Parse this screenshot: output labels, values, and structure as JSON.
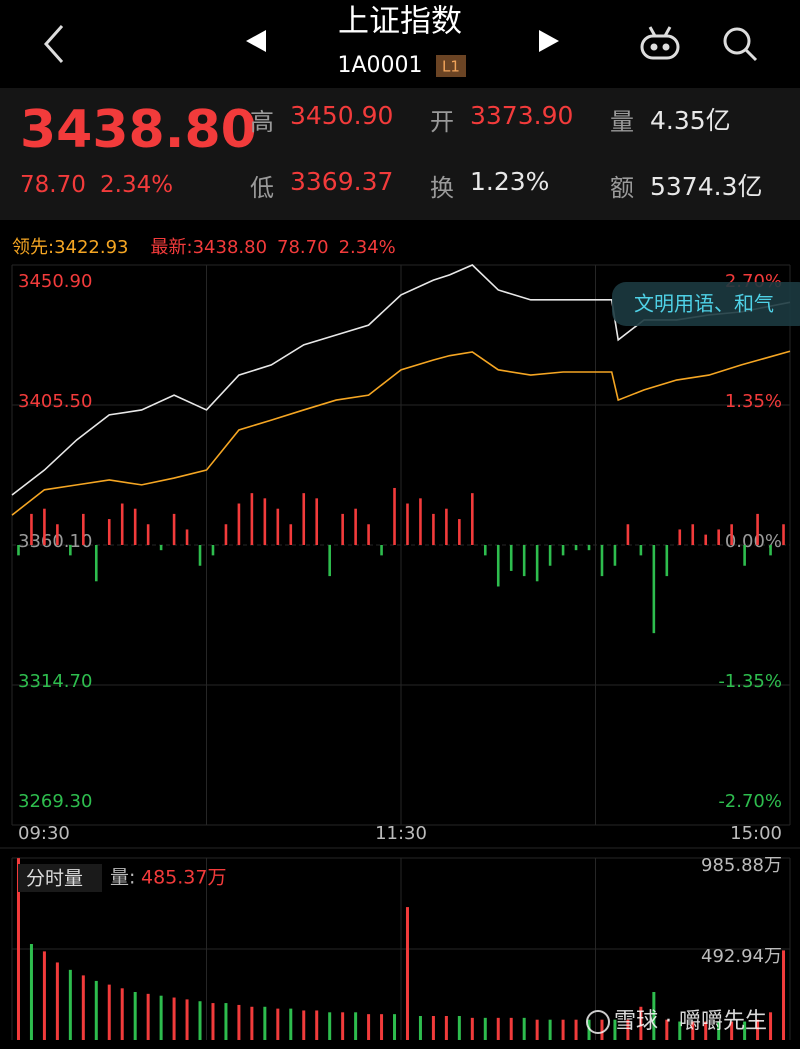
{
  "header": {
    "title": "上证指数",
    "code": "1A0001",
    "level": "L1"
  },
  "quote": {
    "price": "3438.80",
    "change": "78.70",
    "change_pct": "2.34%",
    "stats": [
      {
        "label": "高",
        "value": "3450.90",
        "color": "#f23b3b"
      },
      {
        "label": "开",
        "value": "3373.90",
        "color": "#f23b3b"
      },
      {
        "label": "量",
        "value": "4.35亿",
        "color": "#e8e8e8"
      },
      {
        "label": "低",
        "value": "3369.37",
        "color": "#f23b3b"
      },
      {
        "label": "换",
        "value": "1.23%",
        "color": "#e8e8e8"
      },
      {
        "label": "额",
        "value": "5374.3亿",
        "color": "#e8e8e8"
      }
    ]
  },
  "legend": {
    "lead_label": "领先:",
    "lead_value": "3422.93",
    "latest_label": "最新:",
    "latest_value": "3438.80",
    "latest_change": "78.70",
    "latest_pct": "2.34%"
  },
  "chart_data": [
    {
      "type": "line",
      "xlim": [
        0,
        240
      ],
      "xticks": [
        {
          "value": 0,
          "label": "09:30"
        },
        {
          "value": 120,
          "label": "11:30"
        },
        {
          "value": 240,
          "label": "15:00"
        }
      ],
      "xgrid": [
        0,
        60,
        120,
        180,
        240
      ],
      "ylim": [
        3269.3,
        3450.9
      ],
      "yticks": [
        {
          "value": 3450.9,
          "label": "3450.90"
        },
        {
          "value": 3405.5,
          "label": "3405.50"
        },
        {
          "value": 3360.1,
          "label": "3360.10"
        },
        {
          "value": 3314.7,
          "label": "3314.70"
        },
        {
          "value": 3269.3,
          "label": "3269.30"
        }
      ],
      "y2lim": [
        -2.7,
        2.7
      ],
      "y2ticks": [
        {
          "value": 2.7,
          "label": "2.70%"
        },
        {
          "value": 1.35,
          "label": "1.35%"
        },
        {
          "value": 0,
          "label": "0.00%"
        },
        {
          "value": -1.35,
          "label": "-1.35%"
        },
        {
          "value": -2.7,
          "label": "-2.70%"
        }
      ],
      "up_color": "#f23b3b",
      "down_color": "#2ebd4e",
      "flat_color": "#9a9a9a",
      "x": [
        0,
        10,
        20,
        30,
        40,
        50,
        60,
        70,
        80,
        90,
        100,
        110,
        120,
        130,
        135,
        142,
        150,
        160,
        170,
        180,
        185,
        187,
        195,
        205,
        215,
        225,
        240
      ],
      "series": [
        {
          "color": "#e8e8e8",
          "values": [
            3376.3,
            3384.4,
            3394.2,
            3402.3,
            3403.9,
            3408.7,
            3403.9,
            3415.2,
            3418.5,
            3425.0,
            3428.2,
            3431.4,
            3441.2,
            3446.0,
            3447.7,
            3450.9,
            3442.8,
            3439.6,
            3439.6,
            3439.6,
            3439.6,
            3426.6,
            3433.1,
            3433.1,
            3434.7,
            3435.7,
            3438.8
          ]
        },
        {
          "color": "#f5a623",
          "values": [
            3369.8,
            3378.0,
            3379.6,
            3381.2,
            3379.6,
            3381.8,
            3384.4,
            3397.4,
            3400.6,
            3403.9,
            3407.1,
            3408.7,
            3416.9,
            3420.1,
            3421.5,
            3422.7,
            3416.9,
            3415.2,
            3416.2,
            3416.2,
            3416.2,
            3407.1,
            3410.4,
            3413.6,
            3415.2,
            3418.5,
            3422.93
          ]
        },
        {
          "type": "bar",
          "axis": "y2",
          "x": [
            2,
            6,
            10,
            14,
            18,
            22,
            26,
            30,
            34,
            38,
            42,
            46,
            50,
            54,
            58,
            62,
            66,
            70,
            74,
            78,
            82,
            86,
            90,
            94,
            98,
            102,
            106,
            110,
            114,
            118,
            122,
            126,
            130,
            134,
            138,
            142,
            146,
            150,
            154,
            158,
            162,
            166,
            170,
            174,
            178,
            182,
            186,
            190,
            194,
            198,
            202,
            206,
            210,
            214,
            218,
            222,
            226,
            230,
            234,
            238
          ],
          "values": [
            -0.1,
            0.3,
            0.35,
            0.2,
            -0.1,
            0.3,
            -0.35,
            0.25,
            0.4,
            0.35,
            0.2,
            -0.05,
            0.3,
            0.15,
            -0.2,
            -0.1,
            0.2,
            0.4,
            0.5,
            0.45,
            0.35,
            0.2,
            0.5,
            0.45,
            -0.3,
            0.3,
            0.35,
            0.2,
            -0.1,
            0.55,
            0.4,
            0.45,
            0.3,
            0.35,
            0.25,
            0.5,
            -0.1,
            -0.4,
            -0.25,
            -0.3,
            -0.35,
            -0.2,
            -0.1,
            -0.05,
            -0.05,
            -0.3,
            -0.2,
            0.2,
            -0.1,
            -0.85,
            -0.3,
            0.15,
            0.2,
            0.1,
            0.15,
            0.2,
            -0.2,
            0.3,
            -0.1,
            0.2
          ]
        }
      ]
    },
    {
      "type": "bar",
      "title": "分时量",
      "current_label": "量:",
      "current_value": "485.37万",
      "xlim": [
        0,
        240
      ],
      "ylim": [
        0,
        985.88
      ],
      "yticks": [
        {
          "value": 985.88,
          "label": "985.88万"
        },
        {
          "value": 492.94,
          "label": "492.94万"
        }
      ],
      "up_color": "#f23b3b",
      "down_color": "#2ebd4e",
      "x": [
        2,
        6,
        10,
        14,
        18,
        22,
        26,
        30,
        34,
        38,
        42,
        46,
        50,
        54,
        58,
        62,
        66,
        70,
        74,
        78,
        82,
        86,
        90,
        94,
        98,
        102,
        106,
        110,
        114,
        118,
        122,
        126,
        130,
        134,
        138,
        142,
        146,
        150,
        154,
        158,
        162,
        166,
        170,
        174,
        178,
        182,
        186,
        190,
        194,
        198,
        202,
        206,
        210,
        214,
        218,
        222,
        226,
        230,
        234,
        238
      ],
      "values": [
        985,
        520,
        480,
        420,
        380,
        350,
        320,
        300,
        280,
        260,
        250,
        240,
        230,
        220,
        210,
        200,
        200,
        190,
        180,
        180,
        170,
        170,
        160,
        160,
        150,
        150,
        150,
        140,
        140,
        140,
        720,
        130,
        130,
        130,
        130,
        120,
        120,
        120,
        120,
        120,
        110,
        110,
        110,
        110,
        110,
        110,
        110,
        110,
        180,
        260,
        110,
        100,
        100,
        100,
        100,
        100,
        100,
        110,
        150,
        485.37
      ],
      "up": [
        true,
        false,
        true,
        true,
        false,
        true,
        false,
        true,
        true,
        false,
        true,
        false,
        true,
        true,
        false,
        true,
        false,
        true,
        true,
        false,
        true,
        false,
        true,
        true,
        false,
        true,
        false,
        true,
        true,
        false,
        true,
        false,
        true,
        true,
        false,
        true,
        false,
        true,
        true,
        false,
        true,
        false,
        true,
        true,
        false,
        true,
        false,
        true,
        true,
        false,
        true,
        false,
        true,
        true,
        false,
        true,
        false,
        true,
        true,
        true
      ]
    }
  ],
  "comment_bubble": "文明用语、和气",
  "watermark": "雪球 · 嚼嚼先生"
}
